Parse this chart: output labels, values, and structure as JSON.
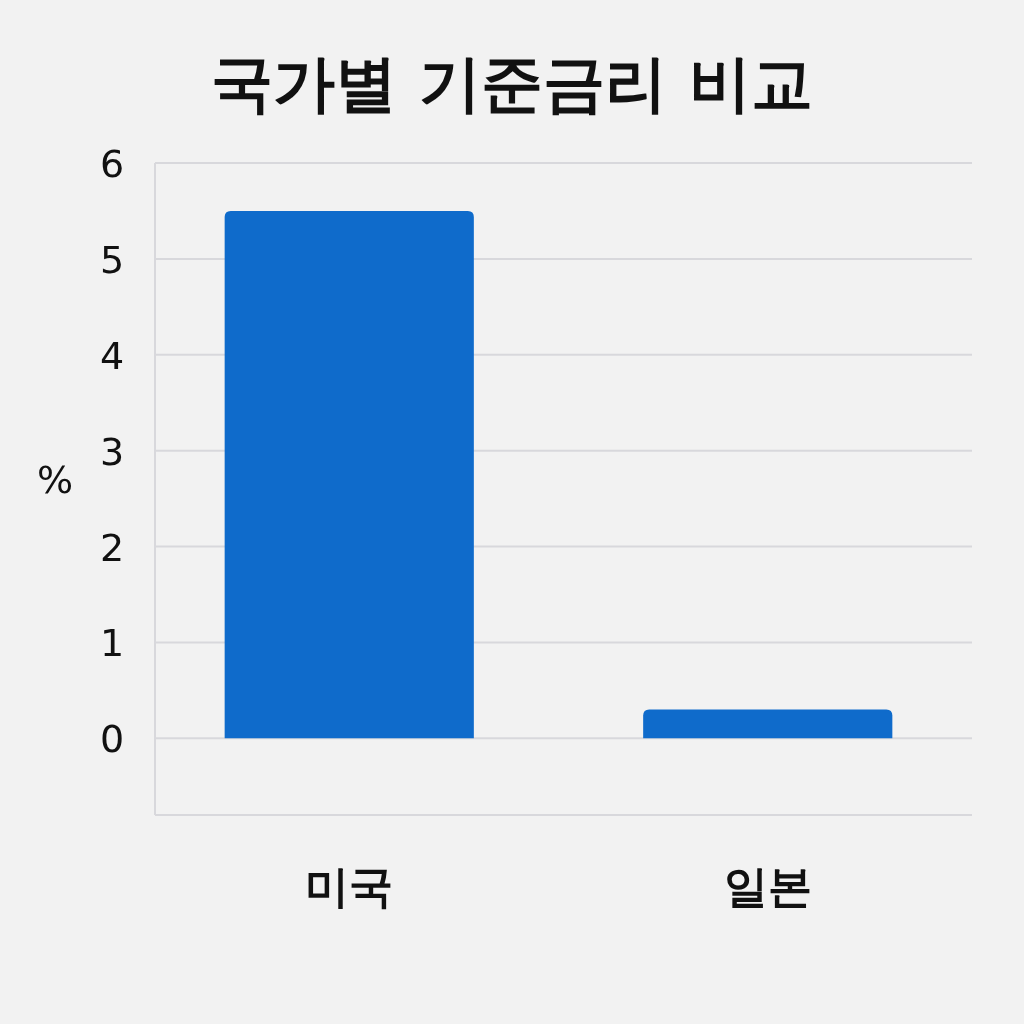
{
  "chart_data": {
    "type": "bar",
    "title": "국가별 기준금리 비교",
    "ylabel": "%",
    "categories": [
      "미국",
      "일본"
    ],
    "values": [
      5.5,
      0.3
    ],
    "color": "#0f6bcb",
    "ylim": [
      -0.8,
      6
    ],
    "yticks": [
      0,
      1,
      2,
      3,
      4,
      5,
      6
    ],
    "grid": "y"
  }
}
